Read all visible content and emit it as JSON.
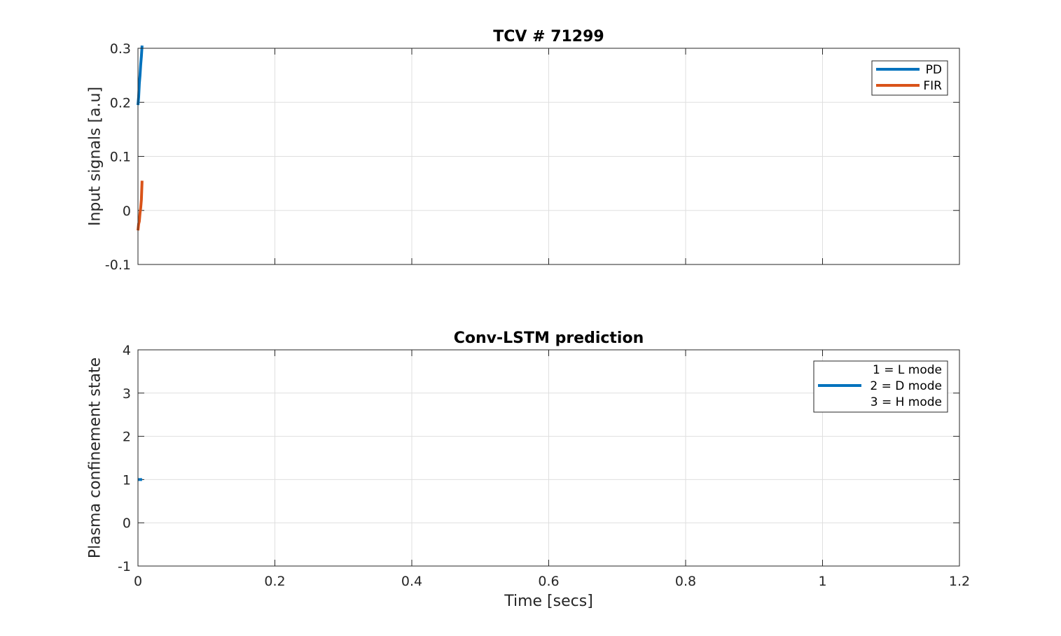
{
  "chart_data": [
    {
      "type": "line",
      "title": "TCV # 71299",
      "xlabel": "",
      "ylabel": "Input signals [a.u]",
      "xlim": [
        0,
        1.2
      ],
      "ylim": [
        -0.1,
        0.3
      ],
      "xticks": [
        0,
        0.2,
        0.4,
        0.6,
        0.8,
        1,
        1.2
      ],
      "yticks": [
        -0.1,
        0,
        0.1,
        0.2,
        0.3
      ],
      "xtick_labels": [
        "",
        "",
        "",
        "",
        "",
        "",
        ""
      ],
      "ytick_labels": [
        "-0.1",
        "0",
        "0.1",
        "0.2",
        "0.3"
      ],
      "grid": true,
      "legend_position": "top-right",
      "series": [
        {
          "name": "PD",
          "color": "#0072BD",
          "x": [
            0.0,
            0.001,
            0.002,
            0.003,
            0.004,
            0.005,
            0.006
          ],
          "y": [
            0.195,
            0.21,
            0.235,
            0.25,
            0.27,
            0.285,
            0.305
          ]
        },
        {
          "name": "FIR",
          "color": "#D95319",
          "x": [
            0.0,
            0.001,
            0.002,
            0.003,
            0.004,
            0.005,
            0.006
          ],
          "y": [
            -0.037,
            -0.025,
            -0.02,
            -0.005,
            0.005,
            0.02,
            0.055
          ]
        }
      ]
    },
    {
      "type": "line",
      "title": "Conv-LSTM prediction",
      "xlabel": "Time [secs]",
      "ylabel": "Plasma confinement state",
      "xlim": [
        0,
        1.2
      ],
      "ylim": [
        -1,
        4
      ],
      "xticks": [
        0,
        0.2,
        0.4,
        0.6,
        0.8,
        1,
        1.2
      ],
      "yticks": [
        -1,
        0,
        1,
        2,
        3,
        4
      ],
      "xtick_labels": [
        "0",
        "0.2",
        "0.4",
        "0.6",
        "0.8",
        "1",
        "1.2"
      ],
      "ytick_labels": [
        "-1",
        "0",
        "1",
        "2",
        "3",
        "4"
      ],
      "grid": true,
      "legend_position": "top-right",
      "legend_entries": [
        {
          "label": "1 = L mode",
          "color": "",
          "has_line": false
        },
        {
          "label": "2 = D mode",
          "color": "#0072BD",
          "has_line": true
        },
        {
          "label": "3 = H mode",
          "color": "",
          "has_line": false
        }
      ],
      "series": [
        {
          "color": "#0072BD",
          "x": [
            0.0,
            0.006
          ],
          "y": [
            1,
            1
          ]
        }
      ]
    }
  ]
}
